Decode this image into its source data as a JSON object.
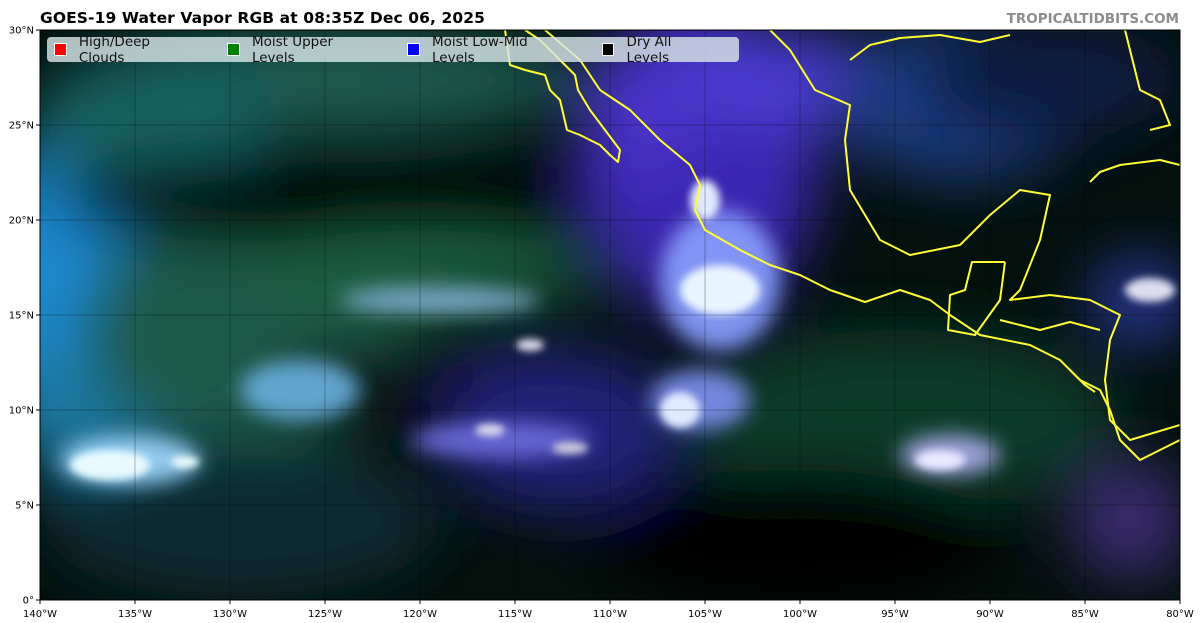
{
  "title": "GOES-19 Water Vapor RGB at 08:35Z Dec 06, 2025",
  "credit": "TROPICALTIDBITS.COM",
  "legend": [
    {
      "label": "High/Deep Clouds",
      "color": "#ff0000"
    },
    {
      "label": "Moist Upper Levels",
      "color": "#008000"
    },
    {
      "label": "Moist Low-Mid Levels",
      "color": "#0000ff"
    },
    {
      "label": "Dry All Levels",
      "color": "#000000"
    }
  ],
  "map": {
    "lon_range": [
      -140,
      -80
    ],
    "lat_range": [
      0,
      30
    ],
    "coastline_color": "#ffff33",
    "x_ticks": [
      "140°W",
      "135°W",
      "130°W",
      "125°W",
      "120°W",
      "115°W",
      "110°W",
      "105°W",
      "100°W",
      "95°W",
      "90°W",
      "85°W",
      "80°W"
    ],
    "y_ticks": [
      "0°",
      "5°N",
      "10°N",
      "15°N",
      "20°N",
      "25°N",
      "30°N"
    ]
  }
}
